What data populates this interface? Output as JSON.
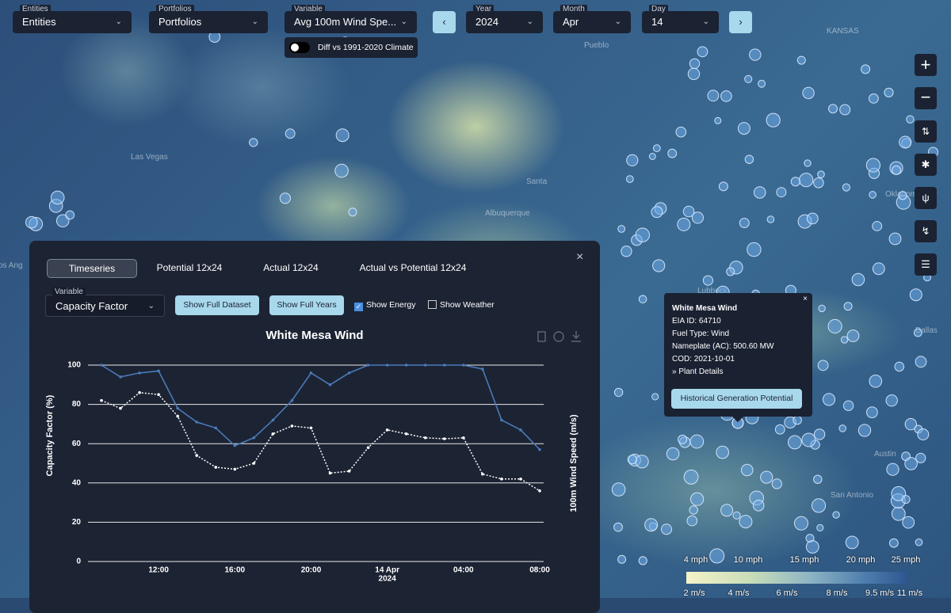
{
  "toolbar": {
    "entities": {
      "label": "Entities",
      "value": "Entities"
    },
    "portfolios": {
      "label": "Portfolios",
      "value": "Portfolios"
    },
    "variable": {
      "label": "Variable",
      "value": "Avg 100m Wind Spe..."
    },
    "year": {
      "label": "Year",
      "value": "2024"
    },
    "month": {
      "label": "Month",
      "value": "Apr"
    },
    "day": {
      "label": "Day",
      "value": "14"
    },
    "toggle": "Diff vs 1991-2020 Climate"
  },
  "map_labels": [
    "KANSAS",
    "Pueblo",
    "Las Vegas",
    "Santa",
    "Albuquerque",
    "Oklahoma City",
    "Lubbock",
    "Dallas",
    "Austin",
    "San Antonio",
    "os Ang"
  ],
  "popup": {
    "title": "White Mesa Wind",
    "lines": [
      "EIA ID: 64710",
      "Fuel Type: Wind",
      "Nameplate (AC): 500.60 MW",
      "COD: 2021-10-01",
      "» Plant Details"
    ],
    "button": "Historical Generation Potential"
  },
  "scale_legend": {
    "mph": [
      "4 mph",
      "10 mph",
      "15 mph",
      "20 mph",
      "25 mph"
    ],
    "ms": [
      "2 m/s",
      "4 m/s",
      "6 m/s",
      "8 m/s",
      "9.5 m/s",
      "11 m/s"
    ]
  },
  "panel": {
    "tabs": [
      "Timeseries",
      "Potential 12x24",
      "Actual 12x24",
      "Actual vs Potential 12x24"
    ],
    "variable_label": "Variable",
    "variable_value": "Capacity Factor",
    "buttons": [
      "Show Full Dataset",
      "Show Full Years"
    ],
    "checkboxes": [
      {
        "label": "Show Energy",
        "checked": true
      },
      {
        "label": "Show Weather",
        "checked": false
      }
    ]
  },
  "chart_data": {
    "type": "line",
    "title": "White Mesa Wind",
    "y_label": "Capacity Factor (%)",
    "y2_label": "100m Wind Speed (m/s)",
    "categories": [
      null,
      null,
      null,
      "12:00",
      null,
      null,
      null,
      "16:00",
      null,
      null,
      null,
      "20:00",
      null,
      null,
      null,
      "14 Apr",
      null,
      null,
      null,
      "04:00",
      null,
      null,
      null,
      "08:00"
    ],
    "category_sublabels": [
      null,
      null,
      null,
      null,
      null,
      null,
      null,
      null,
      null,
      null,
      null,
      null,
      null,
      null,
      null,
      "2024",
      null,
      null,
      null,
      null,
      null,
      null,
      null,
      null
    ],
    "ylim": [
      0,
      100
    ],
    "yticks": [
      0,
      20,
      40,
      60,
      80,
      100
    ],
    "grid": true,
    "series": [
      {
        "color": "#4a7ab8",
        "dash": false,
        "values": [
          100,
          94,
          96,
          97,
          78,
          71,
          68,
          59,
          63,
          72,
          82,
          96,
          90,
          96,
          100,
          100,
          100,
          100,
          100,
          100,
          98,
          72,
          67,
          57
        ]
      },
      {
        "color": "#ffffff",
        "dash": true,
        "values": [
          82,
          78,
          86,
          85,
          74,
          54,
          48,
          47,
          50,
          65,
          69,
          68,
          45,
          46,
          58,
          67,
          65,
          63,
          62.5,
          63,
          44.5,
          42,
          42,
          36
        ]
      }
    ]
  }
}
